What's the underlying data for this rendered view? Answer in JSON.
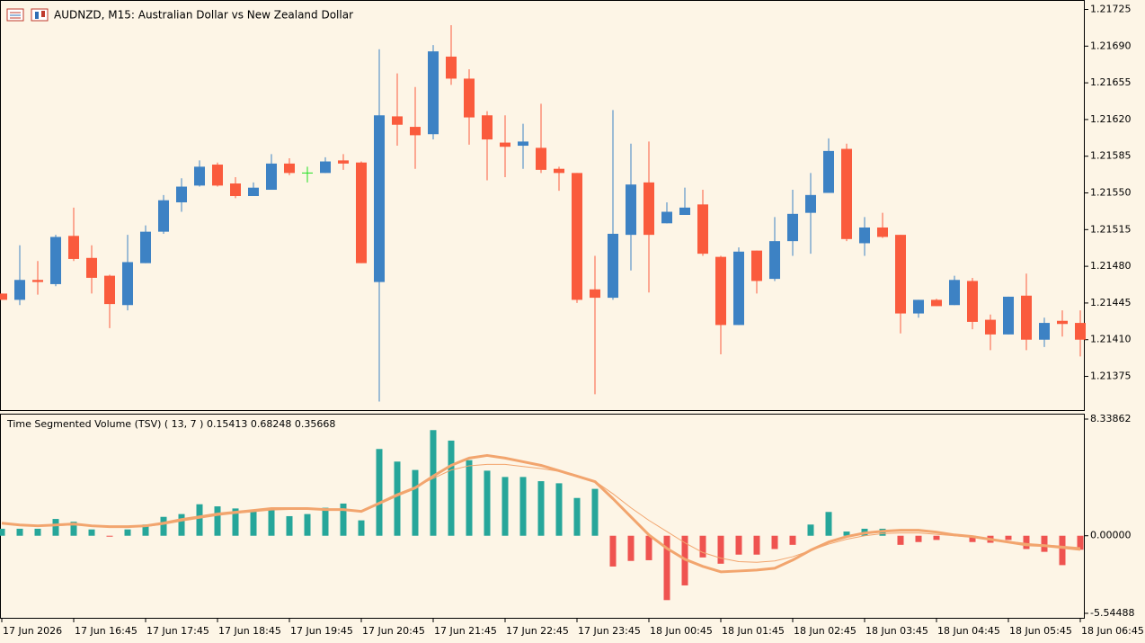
{
  "chart_data": [
    {
      "type": "candlestick",
      "title": "AUDNZD, M15:  Australian Dollar vs New Zealand Dollar",
      "categories": [
        "17 Jun 2026",
        null,
        null,
        null,
        "17 Jun 16:45",
        null,
        null,
        null,
        "17 Jun 17:45",
        null,
        null,
        null,
        "17 Jun 18:45",
        null,
        null,
        null,
        "17 Jun 19:45",
        null,
        null,
        null,
        "17 Jun 20:45",
        null,
        null,
        null,
        "17 Jun 21:45",
        null,
        null,
        null,
        "17 Jun 22:45",
        null,
        null,
        null,
        "17 Jun 23:45",
        null,
        null,
        null,
        "18 Jun 00:45",
        null,
        null,
        null,
        "18 Jun 01:45",
        null,
        null,
        null,
        "18 Jun 02:45",
        null,
        null,
        null,
        "18 Jun 03:45",
        null,
        null,
        null,
        "18 Jun 04:45",
        null,
        null,
        null,
        "18 Jun 05:45",
        null,
        null,
        null,
        "18 Jun 06:45"
      ],
      "open": [
        1.21454,
        1.21448,
        1.21467,
        1.21463,
        1.21509,
        1.21488,
        1.21471,
        1.21443,
        1.21483,
        1.21513,
        1.21541,
        1.21557,
        1.21577,
        1.21559,
        1.21547,
        1.21553,
        1.21578,
        1.21569,
        1.21569,
        1.21581,
        1.21579,
        1.21465,
        1.21623,
        1.21613,
        1.21606,
        1.2168,
        1.21659,
        1.21624,
        1.21598,
        1.21595,
        1.21593,
        1.21573,
        1.21569,
        1.21458,
        1.2145,
        1.2151,
        1.2156,
        1.21521,
        1.21529,
        1.21539,
        1.21489,
        1.21424,
        1.21495,
        1.21468,
        1.21504,
        1.21531,
        1.2155,
        1.21592,
        1.21502,
        1.21517,
        1.2151,
        1.21435,
        1.21448,
        1.21443,
        1.21466,
        1.21429,
        1.21415,
        1.21452,
        1.2141,
        1.21428,
        1.21426
      ],
      "high": [
        1.21454,
        1.215,
        1.21485,
        1.2151,
        1.21536,
        1.215,
        1.21472,
        1.2151,
        1.21519,
        1.21548,
        1.21564,
        1.21581,
        1.21579,
        1.21565,
        1.2156,
        1.21587,
        1.21583,
        1.21575,
        1.21584,
        1.21587,
        1.2158,
        1.21687,
        1.21664,
        1.21651,
        1.21691,
        1.2171,
        1.21668,
        1.21628,
        1.21624,
        1.21616,
        1.21635,
        1.21575,
        1.21569,
        1.2149,
        1.21629,
        1.21597,
        1.21599,
        1.21541,
        1.21555,
        1.21553,
        1.2149,
        1.21498,
        1.21495,
        1.21527,
        1.21553,
        1.21569,
        1.21602,
        1.21597,
        1.21527,
        1.21531,
        1.2151,
        1.21448,
        1.21449,
        1.21471,
        1.21469,
        1.21434,
        1.21451,
        1.21473,
        1.21431,
        1.21438,
        1.21438
      ],
      "low": [
        1.21448,
        1.21443,
        1.21453,
        1.21461,
        1.21485,
        1.21454,
        1.21421,
        1.21438,
        1.21483,
        1.21511,
        1.21532,
        1.21556,
        1.21556,
        1.21545,
        1.21547,
        1.21553,
        1.21567,
        1.2156,
        1.21569,
        1.21572,
        1.21483,
        1.21351,
        1.21595,
        1.21573,
        1.21601,
        1.21653,
        1.21596,
        1.21562,
        1.21565,
        1.21573,
        1.21569,
        1.21552,
        1.21445,
        1.21358,
        1.21448,
        1.21476,
        1.21455,
        1.21521,
        1.21529,
        1.2149,
        1.21396,
        1.21424,
        1.21454,
        1.21466,
        1.2149,
        1.21492,
        1.2155,
        1.21504,
        1.2149,
        1.21507,
        1.21416,
        1.21431,
        1.21442,
        1.21443,
        1.2142,
        1.214,
        1.21415,
        1.214,
        1.21403,
        1.21413,
        1.21394
      ],
      "close": [
        1.21448,
        1.21467,
        1.21465,
        1.21508,
        1.21487,
        1.21469,
        1.21444,
        1.21484,
        1.21513,
        1.21543,
        1.21556,
        1.21575,
        1.21557,
        1.21547,
        1.21555,
        1.21578,
        1.21569,
        1.21569,
        1.2158,
        1.21578,
        1.21483,
        1.21624,
        1.21615,
        1.21605,
        1.21685,
        1.21659,
        1.21622,
        1.21601,
        1.21594,
        1.21599,
        1.21572,
        1.21569,
        1.21448,
        1.2145,
        1.21511,
        1.21558,
        1.2151,
        1.21532,
        1.21536,
        1.21492,
        1.21424,
        1.21494,
        1.21466,
        1.21504,
        1.2153,
        1.21548,
        1.2159,
        1.21506,
        1.21517,
        1.21508,
        1.21435,
        1.21448,
        1.21442,
        1.21467,
        1.21427,
        1.21415,
        1.21451,
        1.2141,
        1.21426,
        1.21425,
        1.2141
      ],
      "up_color": "#3d82c4",
      "down_color": "#fa5b3d",
      "doji_color": "#1fe01f",
      "ylim": [
        1.21342,
        1.21734
      ],
      "yticks": [
        1.21375,
        {
          "value": 1.2141,
          "label": "1.21410"
        },
        1.21445,
        {
          "value": 1.2148,
          "label": "1.21480"
        },
        1.21515,
        {
          "value": 1.2155,
          "label": "1.21550"
        },
        1.21585,
        {
          "value": 1.2162,
          "label": "1.21620"
        },
        1.21655,
        {
          "value": 1.2169,
          "label": "1.21690"
        },
        1.21725
      ]
    },
    {
      "type": "bar",
      "title": "Time Segmented Volume (TSV) ( 13, 7 ) 0.15413 0.68248 0.35668",
      "values": [
        0.5,
        0.5,
        0.5,
        1.2,
        1.0,
        0.45,
        -0.05,
        0.45,
        0.8,
        1.35,
        1.55,
        2.25,
        2.1,
        1.95,
        1.8,
        2.0,
        1.4,
        1.55,
        2.0,
        2.3,
        1.1,
        6.2,
        5.3,
        4.7,
        7.55,
        6.8,
        5.4,
        4.65,
        4.2,
        4.2,
        3.9,
        3.75,
        2.7,
        3.35,
        -2.2,
        -1.8,
        -1.75,
        -4.6,
        -3.55,
        -1.55,
        -2.0,
        -1.35,
        -1.35,
        -0.95,
        -0.65,
        0.8,
        1.7,
        0.3,
        0.5,
        0.5,
        -0.65,
        -0.45,
        -0.3,
        0.05,
        -0.45,
        -0.5,
        -0.3,
        -0.95,
        -1.15,
        -2.1,
        -1.0
      ],
      "color": "#26a69a",
      "negative_color": "#ef5350",
      "series": [
        {
          "color": "#f2a56e",
          "width": 3,
          "values": [
            0.9,
            0.77,
            0.71,
            0.77,
            0.84,
            0.71,
            0.65,
            0.65,
            0.71,
            0.9,
            1.16,
            1.35,
            1.55,
            1.68,
            1.81,
            1.94,
            1.94,
            1.94,
            1.87,
            1.87,
            1.74,
            2.32,
            2.9,
            3.42,
            4.26,
            5.03,
            5.55,
            5.74,
            5.55,
            5.29,
            5.03,
            4.65,
            4.26,
            3.87,
            2.65,
            1.35,
            0.06,
            -0.9,
            -1.68,
            -2.19,
            -2.58,
            -2.52,
            -2.45,
            -2.32,
            -1.74,
            -1.03,
            -0.45,
            -0.06,
            0.19,
            0.32,
            0.39,
            0.39,
            0.26,
            0.06,
            -0.06,
            -0.26,
            -0.45,
            -0.65,
            -0.71,
            -0.84,
            -0.97
          ]
        },
        {
          "color": "#f2a56e",
          "width": 1,
          "values": [
            0.85,
            0.75,
            0.7,
            0.72,
            0.78,
            0.7,
            0.63,
            0.62,
            0.66,
            0.82,
            1.05,
            1.25,
            1.45,
            1.6,
            1.72,
            1.84,
            1.88,
            1.9,
            1.86,
            1.84,
            1.75,
            2.4,
            3.0,
            3.5,
            4.1,
            4.7,
            5.0,
            5.1,
            5.1,
            4.95,
            4.8,
            4.6,
            4.3,
            3.9,
            3.0,
            2.0,
            1.1,
            0.3,
            -0.5,
            -1.2,
            -1.6,
            -1.85,
            -1.9,
            -1.8,
            -1.5,
            -1.05,
            -0.6,
            -0.25,
            0.0,
            0.15,
            0.2,
            0.2,
            0.1,
            0.0,
            -0.1,
            -0.25,
            -0.4,
            -0.55,
            -0.65,
            -0.75,
            -0.85
          ]
        }
      ],
      "ylim": [
        -5.54488,
        8.33862
      ],
      "yticks": [
        -5.54488,
        {
          "value": 0,
          "label": "0.00000"
        },
        8.33862
      ]
    }
  ]
}
